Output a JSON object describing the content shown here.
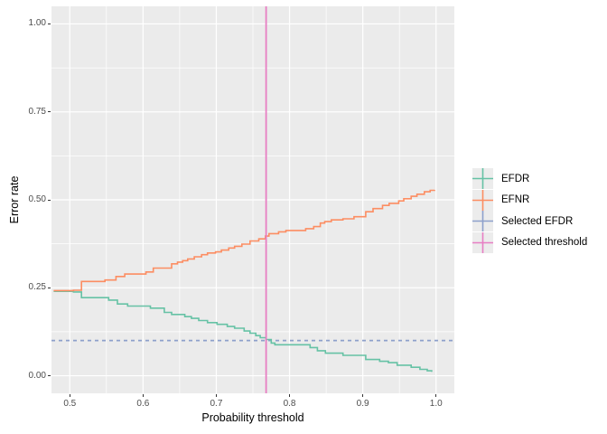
{
  "chart_data": {
    "type": "line",
    "subtype": "step",
    "title": "",
    "xlabel": "Probability threshold",
    "ylabel": "Error rate",
    "xlim": [
      0.475,
      1.025
    ],
    "ylim": [
      -0.05,
      1.05
    ],
    "x_ticks": [
      0.5,
      0.6,
      0.7,
      0.8,
      0.9,
      1.0
    ],
    "x_tick_labels": [
      "0.5",
      "0.6",
      "0.7",
      "0.8",
      "0.9",
      "1.0"
    ],
    "x_minor_ticks": [
      0.55,
      0.65,
      0.75,
      0.85,
      0.95
    ],
    "y_ticks": [
      0,
      0.25,
      0.5,
      0.75,
      1.0
    ],
    "y_tick_labels": [
      "0.00",
      "0.25",
      "0.50",
      "0.75",
      "1.00"
    ],
    "y_minor_ticks": [
      0.125,
      0.375,
      0.625,
      0.875
    ],
    "grid": "major+minor",
    "panel_bg": "#EBEBEB",
    "grid_color": "#FFFFFF",
    "legend_position": "right",
    "series": [
      {
        "name": "EFDR",
        "type": "step",
        "color": "#66C2A5",
        "points": [
          [
            0.478,
            0.24
          ],
          [
            0.505,
            0.238
          ],
          [
            0.516,
            0.222
          ],
          [
            0.553,
            0.215
          ],
          [
            0.565,
            0.204
          ],
          [
            0.579,
            0.198
          ],
          [
            0.61,
            0.192
          ],
          [
            0.629,
            0.18
          ],
          [
            0.639,
            0.174
          ],
          [
            0.657,
            0.168
          ],
          [
            0.666,
            0.163
          ],
          [
            0.676,
            0.157
          ],
          [
            0.688,
            0.151
          ],
          [
            0.701,
            0.146
          ],
          [
            0.715,
            0.14
          ],
          [
            0.725,
            0.135
          ],
          [
            0.738,
            0.127
          ],
          [
            0.746,
            0.121
          ],
          [
            0.754,
            0.114
          ],
          [
            0.76,
            0.108
          ],
          [
            0.768,
            0.103
          ],
          [
            0.775,
            0.093
          ],
          [
            0.78,
            0.088
          ],
          [
            0.828,
            0.08
          ],
          [
            0.838,
            0.071
          ],
          [
            0.849,
            0.064
          ],
          [
            0.873,
            0.058
          ],
          [
            0.904,
            0.046
          ],
          [
            0.923,
            0.041
          ],
          [
            0.935,
            0.037
          ],
          [
            0.947,
            0.03
          ],
          [
            0.966,
            0.024
          ],
          [
            0.978,
            0.018
          ],
          [
            0.988,
            0.014
          ],
          [
            0.994,
            0.011
          ]
        ]
      },
      {
        "name": "EFNR",
        "type": "step",
        "color": "#FC8D62",
        "points": [
          [
            0.478,
            0.242
          ],
          [
            0.505,
            0.243
          ],
          [
            0.516,
            0.268
          ],
          [
            0.548,
            0.272
          ],
          [
            0.563,
            0.282
          ],
          [
            0.575,
            0.289
          ],
          [
            0.604,
            0.295
          ],
          [
            0.614,
            0.306
          ],
          [
            0.639,
            0.318
          ],
          [
            0.647,
            0.323
          ],
          [
            0.654,
            0.327
          ],
          [
            0.661,
            0.332
          ],
          [
            0.67,
            0.338
          ],
          [
            0.68,
            0.344
          ],
          [
            0.688,
            0.349
          ],
          [
            0.699,
            0.352
          ],
          [
            0.707,
            0.357
          ],
          [
            0.717,
            0.363
          ],
          [
            0.725,
            0.368
          ],
          [
            0.735,
            0.374
          ],
          [
            0.746,
            0.383
          ],
          [
            0.758,
            0.389
          ],
          [
            0.767,
            0.397
          ],
          [
            0.772,
            0.404
          ],
          [
            0.785,
            0.409
          ],
          [
            0.795,
            0.413
          ],
          [
            0.822,
            0.418
          ],
          [
            0.833,
            0.424
          ],
          [
            0.842,
            0.434
          ],
          [
            0.848,
            0.438
          ],
          [
            0.857,
            0.443
          ],
          [
            0.873,
            0.446
          ],
          [
            0.888,
            0.452
          ],
          [
            0.904,
            0.466
          ],
          [
            0.914,
            0.475
          ],
          [
            0.927,
            0.484
          ],
          [
            0.936,
            0.49
          ],
          [
            0.949,
            0.497
          ],
          [
            0.956,
            0.503
          ],
          [
            0.966,
            0.51
          ],
          [
            0.974,
            0.516
          ],
          [
            0.984,
            0.523
          ],
          [
            0.992,
            0.527
          ],
          [
            0.998,
            0.528
          ]
        ]
      },
      {
        "name": "Selected EFDR",
        "type": "hline",
        "linetype": "dashed",
        "color": "#8DA0CB",
        "value": 0.1
      },
      {
        "name": "Selected threshold",
        "type": "vline",
        "linetype": "solid",
        "color": "#E77EC3",
        "value": 0.768
      }
    ]
  },
  "legend": {
    "items": [
      {
        "label": "EFDR",
        "color": "#66C2A5"
      },
      {
        "label": "EFNR",
        "color": "#FC8D62"
      },
      {
        "label": "Selected EFDR",
        "color": "#8DA0CB"
      },
      {
        "label": "Selected threshold",
        "color": "#E77EC3"
      }
    ]
  }
}
